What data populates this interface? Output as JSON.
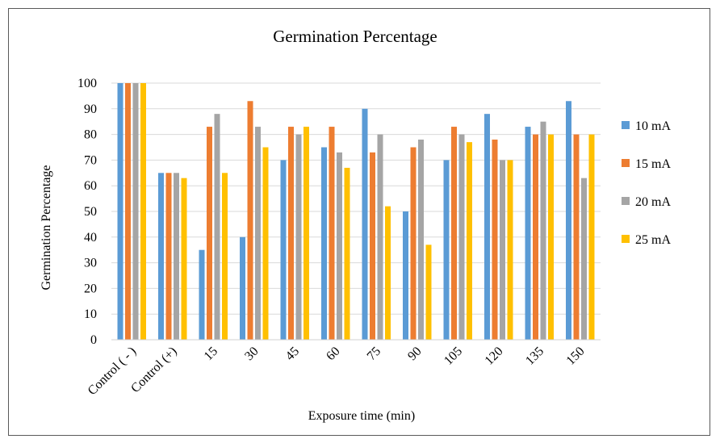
{
  "chart_data": {
    "type": "bar",
    "title": "Germination Percentage",
    "xlabel": "Exposure time (min)",
    "ylabel": "Germination Percentage",
    "ylim": [
      0,
      100
    ],
    "yticks": [
      0,
      10,
      20,
      30,
      40,
      50,
      60,
      70,
      80,
      90,
      100
    ],
    "grid": true,
    "legend_position": "right",
    "categories": [
      "Control ( - )",
      "Control (+)",
      "15",
      "30",
      "45",
      "60",
      "75",
      "90",
      "105",
      "120",
      "135",
      "150"
    ],
    "series": [
      {
        "name": "10 mA",
        "color": "#5B9BD5",
        "values": [
          100,
          65,
          35,
          40,
          70,
          75,
          90,
          50,
          70,
          88,
          83,
          93
        ]
      },
      {
        "name": "15 mA",
        "color": "#ED7D31",
        "values": [
          100,
          65,
          83,
          93,
          83,
          83,
          73,
          75,
          83,
          78,
          80,
          80
        ]
      },
      {
        "name": "20 mA",
        "color": "#A5A5A5",
        "values": [
          100,
          65,
          88,
          83,
          80,
          73,
          80,
          78,
          80,
          70,
          85,
          63
        ]
      },
      {
        "name": "25 mA",
        "color": "#FFC000",
        "values": [
          100,
          63,
          65,
          75,
          83,
          67,
          52,
          37,
          77,
          70,
          80,
          80
        ]
      }
    ]
  }
}
